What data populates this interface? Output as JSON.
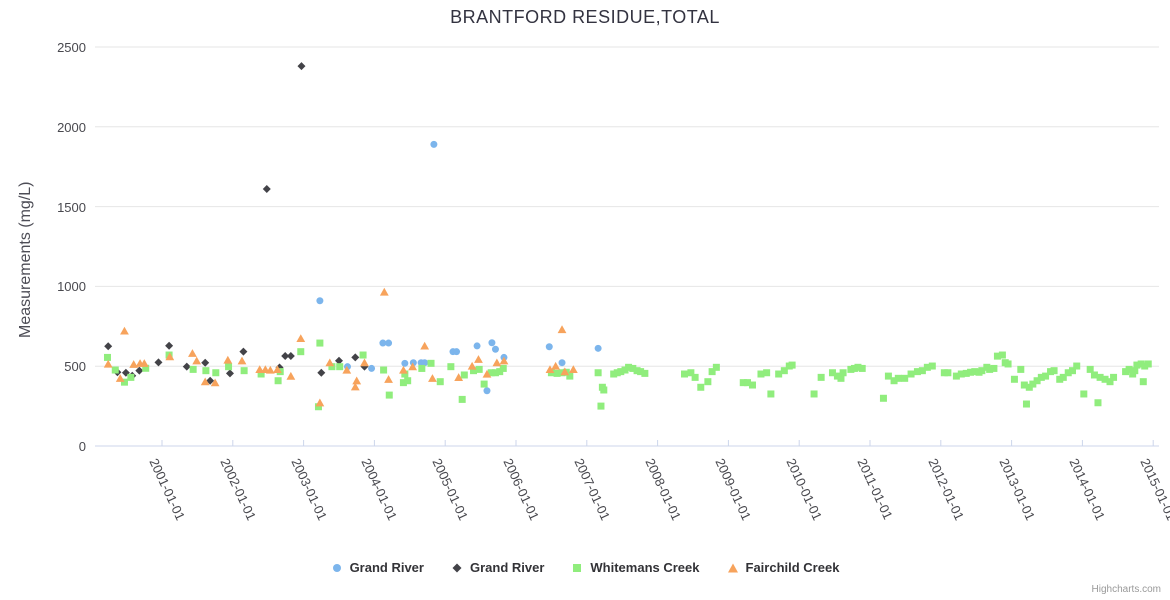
{
  "title": "BRANTFORD RESIDUE,TOTAL",
  "credits": "Highcharts.com",
  "colors": {
    "grand_river_circle": "#7cb5ec",
    "grand_river_diamond": "#434348",
    "whitemans_creek": "#90ed7d",
    "fairchild_creek": "#f7a35c",
    "gridline": "#e6e6e6",
    "axis_line": "#ccd6eb"
  },
  "y_axis": {
    "title": "Measurements (mg/L)",
    "ticks": [
      0,
      500,
      1000,
      1500,
      2000,
      2500
    ]
  },
  "x_axis": {
    "labels": [
      "2001-01-01",
      "2002-01-01",
      "2003-01-01",
      "2004-01-01",
      "2005-01-01",
      "2006-01-01",
      "2007-01-01",
      "2008-01-01",
      "2009-01-01",
      "2010-01-01",
      "2011-01-01",
      "2012-01-01",
      "2013-01-01",
      "2014-01-01",
      "2015-01-01"
    ]
  },
  "legend": {
    "items": [
      {
        "label": "Grand River",
        "marker": "circle",
        "color": "#7cb5ec"
      },
      {
        "label": "Grand River",
        "marker": "diamond",
        "color": "#434348"
      },
      {
        "label": "Whitemans Creek",
        "marker": "square",
        "color": "#90ed7d"
      },
      {
        "label": "Fairchild Creek",
        "marker": "triangle",
        "color": "#f7a35c"
      }
    ]
  },
  "chart_data": {
    "type": "scatter",
    "title": "BRANTFORD RESIDUE,TOTAL",
    "xlabel": "",
    "ylabel": "Measurements (mg/L)",
    "x_unit": "decimal_year",
    "xlim": [
      2000.05,
      2015.08
    ],
    "ylim": [
      0,
      2500
    ],
    "grid": "horizontal",
    "legend_position": "bottom",
    "series": [
      {
        "name": "Grand River",
        "marker": "circle",
        "color": "#7cb5ec",
        "points": [
          [
            2003.23,
            910
          ],
          [
            2003.62,
            497
          ],
          [
            2003.96,
            486
          ],
          [
            2004.12,
            645
          ],
          [
            2004.2,
            645
          ],
          [
            2004.43,
            518
          ],
          [
            2004.55,
            522
          ],
          [
            2004.66,
            522
          ],
          [
            2004.71,
            522
          ],
          [
            2004.84,
            1890
          ],
          [
            2005.11,
            591
          ],
          [
            2005.16,
            591
          ],
          [
            2005.45,
            627
          ],
          [
            2005.59,
            346
          ],
          [
            2005.66,
            647
          ],
          [
            2005.71,
            606
          ],
          [
            2005.83,
            555
          ],
          [
            2006.47,
            622
          ],
          [
            2006.65,
            522
          ],
          [
            2007.16,
            612
          ]
        ]
      },
      {
        "name": "Grand River",
        "marker": "diamond",
        "color": "#434348",
        "points": [
          [
            2000.24,
            625
          ],
          [
            2000.37,
            462
          ],
          [
            2000.49,
            459
          ],
          [
            2000.58,
            440
          ],
          [
            2000.68,
            472
          ],
          [
            2000.95,
            524
          ],
          [
            2001.1,
            628
          ],
          [
            2001.35,
            497
          ],
          [
            2001.61,
            522
          ],
          [
            2001.68,
            409
          ],
          [
            2001.96,
            455
          ],
          [
            2002.15,
            591
          ],
          [
            2002.48,
            1610
          ],
          [
            2002.66,
            492
          ],
          [
            2002.74,
            564
          ],
          [
            2002.82,
            564
          ],
          [
            2002.97,
            2380
          ],
          [
            2003.25,
            459
          ],
          [
            2003.5,
            534
          ],
          [
            2003.73,
            555
          ],
          [
            2003.86,
            497
          ]
        ]
      },
      {
        "name": "Whitemans Creek",
        "marker": "square",
        "color": "#90ed7d",
        "points": [
          [
            2000.23,
            555
          ],
          [
            2000.34,
            476
          ],
          [
            2000.47,
            400
          ],
          [
            2000.56,
            430
          ],
          [
            2000.77,
            487
          ],
          [
            2001.1,
            570
          ],
          [
            2001.44,
            480
          ],
          [
            2001.62,
            472
          ],
          [
            2001.76,
            459
          ],
          [
            2001.94,
            497
          ],
          [
            2002.16,
            472
          ],
          [
            2002.4,
            451
          ],
          [
            2002.64,
            409
          ],
          [
            2002.67,
            466
          ],
          [
            2002.96,
            591
          ],
          [
            2003.21,
            246
          ],
          [
            2003.23,
            645
          ],
          [
            2003.4,
            497
          ],
          [
            2003.51,
            497
          ],
          [
            2003.84,
            570
          ],
          [
            2004.13,
            476
          ],
          [
            2004.21,
            319
          ],
          [
            2004.41,
            397
          ],
          [
            2004.43,
            451
          ],
          [
            2004.47,
            409
          ],
          [
            2004.67,
            486
          ],
          [
            2004.8,
            518
          ],
          [
            2004.93,
            403
          ],
          [
            2005.08,
            497
          ],
          [
            2005.24,
            292
          ],
          [
            2005.27,
            445
          ],
          [
            2005.4,
            472
          ],
          [
            2005.48,
            480
          ],
          [
            2005.55,
            388
          ],
          [
            2005.65,
            459
          ],
          [
            2005.71,
            459
          ],
          [
            2005.77,
            466
          ],
          [
            2005.82,
            486
          ],
          [
            2006.5,
            459
          ],
          [
            2006.58,
            455
          ],
          [
            2006.65,
            459
          ],
          [
            2006.71,
            462
          ],
          [
            2006.76,
            438
          ],
          [
            2007.16,
            459
          ],
          [
            2007.2,
            250
          ],
          [
            2007.22,
            368
          ],
          [
            2007.24,
            351
          ],
          [
            2007.38,
            451
          ],
          [
            2007.43,
            459
          ],
          [
            2007.48,
            466
          ],
          [
            2007.54,
            476
          ],
          [
            2007.59,
            493
          ],
          [
            2007.65,
            486
          ],
          [
            2007.71,
            472
          ],
          [
            2007.76,
            466
          ],
          [
            2007.82,
            455
          ],
          [
            2008.38,
            451
          ],
          [
            2008.47,
            459
          ],
          [
            2008.53,
            430
          ],
          [
            2008.61,
            368
          ],
          [
            2008.71,
            403
          ],
          [
            2008.77,
            466
          ],
          [
            2008.83,
            493
          ],
          [
            2009.21,
            397
          ],
          [
            2009.27,
            397
          ],
          [
            2009.34,
            382
          ],
          [
            2009.46,
            451
          ],
          [
            2009.54,
            459
          ],
          [
            2009.6,
            326
          ],
          [
            2009.71,
            451
          ],
          [
            2009.79,
            472
          ],
          [
            2009.86,
            501
          ],
          [
            2009.9,
            507
          ],
          [
            2010.21,
            326
          ],
          [
            2010.31,
            430
          ],
          [
            2010.47,
            459
          ],
          [
            2010.54,
            438
          ],
          [
            2010.59,
            424
          ],
          [
            2010.62,
            459
          ],
          [
            2010.73,
            480
          ],
          [
            2010.78,
            486
          ],
          [
            2010.83,
            493
          ],
          [
            2010.89,
            486
          ],
          [
            2011.19,
            299
          ],
          [
            2011.26,
            438
          ],
          [
            2011.34,
            409
          ],
          [
            2011.4,
            424
          ],
          [
            2011.49,
            424
          ],
          [
            2011.58,
            451
          ],
          [
            2011.67,
            466
          ],
          [
            2011.74,
            472
          ],
          [
            2011.81,
            493
          ],
          [
            2011.88,
            501
          ],
          [
            2012.05,
            459
          ],
          [
            2012.1,
            459
          ],
          [
            2012.22,
            438
          ],
          [
            2012.29,
            451
          ],
          [
            2012.36,
            455
          ],
          [
            2012.42,
            462
          ],
          [
            2012.48,
            466
          ],
          [
            2012.54,
            462
          ],
          [
            2012.58,
            472
          ],
          [
            2012.65,
            493
          ],
          [
            2012.69,
            480
          ],
          [
            2012.75,
            486
          ],
          [
            2012.8,
            563
          ],
          [
            2012.87,
            570
          ],
          [
            2012.91,
            522
          ],
          [
            2012.95,
            514
          ],
          [
            2013.04,
            418
          ],
          [
            2013.13,
            480
          ],
          [
            2013.18,
            382
          ],
          [
            2013.21,
            263
          ],
          [
            2013.25,
            368
          ],
          [
            2013.3,
            388
          ],
          [
            2013.36,
            409
          ],
          [
            2013.42,
            430
          ],
          [
            2013.48,
            438
          ],
          [
            2013.55,
            466
          ],
          [
            2013.6,
            472
          ],
          [
            2013.68,
            418
          ],
          [
            2013.73,
            430
          ],
          [
            2013.8,
            459
          ],
          [
            2013.86,
            472
          ],
          [
            2013.92,
            501
          ],
          [
            2014.02,
            326
          ],
          [
            2014.11,
            480
          ],
          [
            2014.17,
            445
          ],
          [
            2014.22,
            271
          ],
          [
            2014.25,
            430
          ],
          [
            2014.32,
            418
          ],
          [
            2014.39,
            403
          ],
          [
            2014.44,
            430
          ],
          [
            2014.61,
            466
          ],
          [
            2014.66,
            480
          ],
          [
            2014.71,
            451
          ],
          [
            2014.74,
            472
          ],
          [
            2014.77,
            507
          ],
          [
            2014.83,
            514
          ],
          [
            2014.86,
            403
          ],
          [
            2014.88,
            501
          ],
          [
            2014.93,
            514
          ]
        ]
      },
      {
        "name": "Fairchild Creek",
        "marker": "triangle",
        "color": "#f7a35c",
        "points": [
          [
            2000.24,
            514
          ],
          [
            2000.41,
            424
          ],
          [
            2000.47,
            721
          ],
          [
            2000.6,
            512
          ],
          [
            2000.69,
            518
          ],
          [
            2000.75,
            518
          ],
          [
            2001.11,
            560
          ],
          [
            2001.43,
            581
          ],
          [
            2001.49,
            534
          ],
          [
            2001.61,
            403
          ],
          [
            2001.75,
            397
          ],
          [
            2001.93,
            539
          ],
          [
            2002.13,
            534
          ],
          [
            2002.38,
            480
          ],
          [
            2002.46,
            480
          ],
          [
            2002.53,
            476
          ],
          [
            2002.63,
            480
          ],
          [
            2002.82,
            438
          ],
          [
            2002.96,
            674
          ],
          [
            2003.23,
            271
          ],
          [
            2003.37,
            522
          ],
          [
            2003.61,
            476
          ],
          [
            2003.73,
            371
          ],
          [
            2003.75,
            409
          ],
          [
            2003.86,
            522
          ],
          [
            2004.14,
            965
          ],
          [
            2004.2,
            418
          ],
          [
            2004.41,
            476
          ],
          [
            2004.54,
            497
          ],
          [
            2004.71,
            627
          ],
          [
            2004.82,
            424
          ],
          [
            2005.19,
            430
          ],
          [
            2005.38,
            501
          ],
          [
            2005.47,
            543
          ],
          [
            2005.59,
            451
          ],
          [
            2005.73,
            522
          ],
          [
            2005.83,
            534
          ],
          [
            2006.48,
            480
          ],
          [
            2006.56,
            501
          ],
          [
            2006.65,
            730
          ],
          [
            2006.69,
            466
          ],
          [
            2006.81,
            480
          ]
        ]
      }
    ]
  }
}
